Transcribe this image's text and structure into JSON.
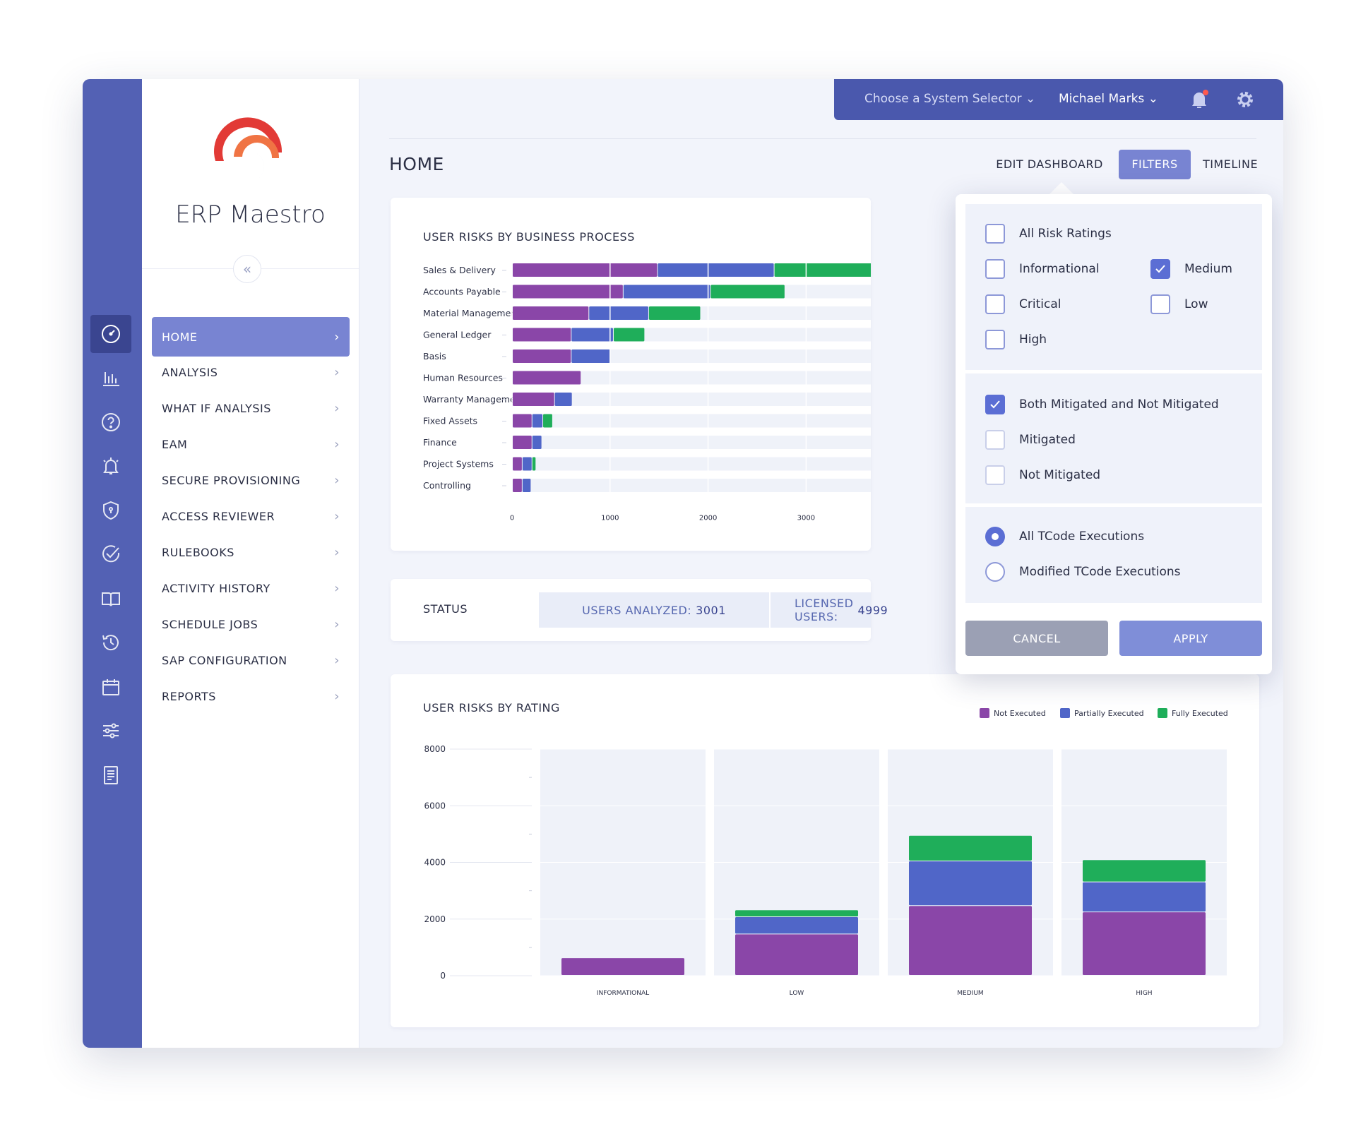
{
  "app": {
    "name": "ERP Maestro"
  },
  "topbar": {
    "system_selector": "Choose a System Selector",
    "user": "Michael Marks"
  },
  "page": {
    "title": "HOME",
    "tabs": [
      {
        "label": "EDIT DASHBOARD",
        "active": false
      },
      {
        "label": "FILTERS",
        "active": true
      },
      {
        "label": "TIMELINE",
        "active": false
      }
    ]
  },
  "rail_icons": [
    "dashboard-icon",
    "analysis-icon",
    "help-icon",
    "bell-icon",
    "shield-icon",
    "check-circle-icon",
    "book-icon",
    "history-icon",
    "calendar-icon",
    "sliders-icon",
    "report-icon"
  ],
  "nav": {
    "items": [
      {
        "label": "HOME",
        "active": true
      },
      {
        "label": "ANALYSIS"
      },
      {
        "label": "WHAT IF ANALYSIS"
      },
      {
        "label": "EAM"
      },
      {
        "label": "SECURE PROVISIONING"
      },
      {
        "label": "ACCESS REVIEWER"
      },
      {
        "label": "RULEBOOKS"
      },
      {
        "label": "ACTIVITY HISTORY"
      },
      {
        "label": "SCHEDULE JOBS"
      },
      {
        "label": "SAP CONFIGURATION"
      },
      {
        "label": "REPORTS"
      }
    ]
  },
  "colors": {
    "not_executed": "#8a46a8",
    "partially_executed": "#5066c8",
    "fully_executed": "#1fae5a",
    "accent": "#7884d2",
    "brand_dark": "#4a58ad"
  },
  "business_process_card": {
    "title": "USER RISKS BY BUSINESS PROCESS"
  },
  "status_card": {
    "title": "STATUS",
    "users_analyzed_label": "USERS ANALYZED:",
    "users_analyzed_value": "3001",
    "licensed_users_label": "LICENSED USERS:",
    "licensed_users_value": "4999"
  },
  "rating_card": {
    "title": "USER RISKS BY RATING"
  },
  "filters": {
    "risk_ratings": [
      {
        "label": "All Risk Ratings",
        "checked": false
      },
      {
        "label": "Informational",
        "checked": false
      },
      {
        "label": "Medium",
        "checked": true
      },
      {
        "label": "Critical",
        "checked": false
      },
      {
        "label": "Low",
        "checked": false
      },
      {
        "label": "High",
        "checked": false
      }
    ],
    "mitigation": [
      {
        "label": "Both Mitigated and Not Mitigated",
        "checked": true
      },
      {
        "label": "Mitigated",
        "checked": false
      },
      {
        "label": "Not Mitigated",
        "checked": false
      }
    ],
    "tcode": [
      {
        "label": "All TCode Executions",
        "selected": true
      },
      {
        "label": "Modified TCode Executions",
        "selected": false
      }
    ],
    "cancel_label": "CANCEL",
    "apply_label": "APPLY"
  },
  "chart_data": [
    {
      "type": "bar",
      "orientation": "horizontal",
      "stacked": true,
      "title": "USER RISKS BY BUSINESS PROCESS",
      "categories": [
        "Sales & Delivery",
        "Accounts Payable",
        "Material Management",
        "General Ledger",
        "Basis",
        "Human Resources",
        "Warranty Management",
        "Fixed Assets",
        "Finance",
        "Project Systems",
        "Controlling"
      ],
      "series": [
        {
          "name": "Not Executed",
          "values": [
            1480,
            1130,
            780,
            600,
            600,
            700,
            430,
            200,
            200,
            100,
            100
          ]
        },
        {
          "name": "Partially Executed",
          "values": [
            1190,
            890,
            610,
            430,
            400,
            0,
            180,
            110,
            100,
            100,
            90
          ]
        },
        {
          "name": "Fully Executed",
          "values": [
            1000,
            760,
            530,
            320,
            0,
            0,
            0,
            100,
            0,
            40,
            0
          ]
        }
      ],
      "x_ticks": [
        "0",
        "1000",
        "2000",
        "3000"
      ],
      "xlim": [
        0,
        3660
      ]
    },
    {
      "type": "bar",
      "stacked": true,
      "title": "USER RISKS BY RATING",
      "categories": [
        "INFORMATIONAL",
        "LOW",
        "MEDIUM",
        "HIGH"
      ],
      "series": [
        {
          "name": "Not Executed",
          "values": [
            620,
            1460,
            2460,
            2240
          ]
        },
        {
          "name": "Partially Executed",
          "values": [
            0,
            610,
            1580,
            1060
          ]
        },
        {
          "name": "Fully Executed",
          "values": [
            0,
            240,
            900,
            780
          ]
        }
      ],
      "y_ticks": [
        "0",
        "2000",
        "4000",
        "6000",
        "8000"
      ],
      "ylim": [
        0,
        8000
      ],
      "legend": [
        "Not Executed",
        "Partially Executed",
        "Fully Executed"
      ],
      "legend_position": "top-right"
    }
  ]
}
